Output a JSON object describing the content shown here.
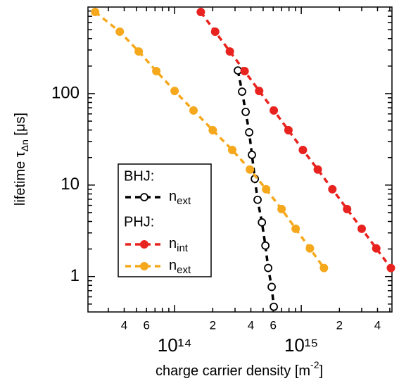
{
  "chart_data": {
    "type": "line",
    "log_x": true,
    "log_y": true,
    "xlim": [
      20700000000000.0,
      5200000000000000.0
    ],
    "ylim": [
      0.41,
      884
    ],
    "xticks": [
      {
        "value": 40000000000000.0,
        "label": "4"
      },
      {
        "value": 60000000000000.0,
        "label": "6"
      },
      {
        "value": 100000000000000.0,
        "label": "10¹⁴"
      },
      {
        "value": 200000000000000.0,
        "label": "2"
      },
      {
        "value": 400000000000000.0,
        "label": "4"
      },
      {
        "value": 600000000000000.0,
        "label": "6"
      },
      {
        "value": 1000000000000000.0,
        "label": "10¹⁵"
      },
      {
        "value": 2000000000000000.0,
        "label": "2"
      },
      {
        "value": 4000000000000000.0,
        "label": "4"
      }
    ],
    "xminorticks": [
      30000000000000.0,
      50000000000000.0,
      70000000000000.0,
      80000000000000.0,
      90000000000000.0,
      300000000000000.0,
      500000000000000.0,
      700000000000000.0,
      800000000000000.0,
      900000000000000.0,
      3000000000000000.0,
      5000000000000000.0
    ],
    "yticks": [
      1,
      10,
      100
    ],
    "yminorticks": [
      0.5,
      0.6,
      0.7,
      0.8,
      0.9,
      2,
      3,
      4,
      5,
      6,
      7,
      8,
      9,
      20,
      30,
      40,
      50,
      60,
      70,
      80,
      90,
      200,
      300,
      400,
      500,
      600,
      700,
      800
    ],
    "x_label": [
      "charge carrier density [m",
      "-2",
      "]"
    ],
    "y_label": [
      "lifetime τ",
      "Δn",
      " [μs]"
    ],
    "legend_groups": [
      "BHJ:",
      "PHJ:"
    ],
    "series": [
      {
        "name": "n",
        "name_sub": "ext",
        "color": "#000000",
        "marker": "open",
        "x": [
          316000000000000.0,
          341000000000000.0,
          364000000000000.0,
          388000000000000.0,
          408000000000000.0,
          430000000000000.0,
          452000000000000.0,
          489000000000000.0,
          521000000000000.0,
          548000000000000.0,
          584000000000000.0,
          607000000000000.0
        ],
        "values": [
          179,
          105,
          63.1,
          37.7,
          21.4,
          11.7,
          6.9,
          3.91,
          2.18,
          1.24,
          0.77,
          0.467
        ]
      },
      {
        "name": "n",
        "name_sub": "int",
        "color": "#e8231f",
        "marker": "filled",
        "x": [
          161000000000000.0,
          209000000000000.0,
          273000000000000.0,
          357000000000000.0,
          465000000000000.0,
          607000000000000.0,
          792000000000000.0,
          1030000000000000.0,
          1350000000000000.0,
          1760000000000000.0,
          2300000000000000.0,
          3000000000000000.0,
          3910000000000000.0,
          5100000000000000.0
        ],
        "values": [
          780,
          475,
          289,
          176,
          107,
          65.4,
          39.8,
          24.2,
          14.8,
          9.0,
          5.47,
          3.33,
          2.03,
          1.24
        ]
      },
      {
        "name": "n",
        "name_sub": "ext",
        "color": "#f5a81c",
        "marker": "filled",
        "x": [
          23600000000000.0,
          36900000000000.0,
          52100000000000.0,
          71700000000000.0,
          100000000000000.0,
          141000000000000.0,
          200000000000000.0,
          285000000000000.0,
          393000000000000.0,
          528000000000000.0,
          699000000000000.0,
          903000000000000.0,
          1170000000000000.0,
          1510000000000000.0
        ],
        "values": [
          780,
          475,
          289,
          176,
          107,
          65.4,
          39.8,
          24.2,
          14.8,
          9.0,
          5.47,
          3.33,
          2.03,
          1.24
        ]
      }
    ]
  }
}
